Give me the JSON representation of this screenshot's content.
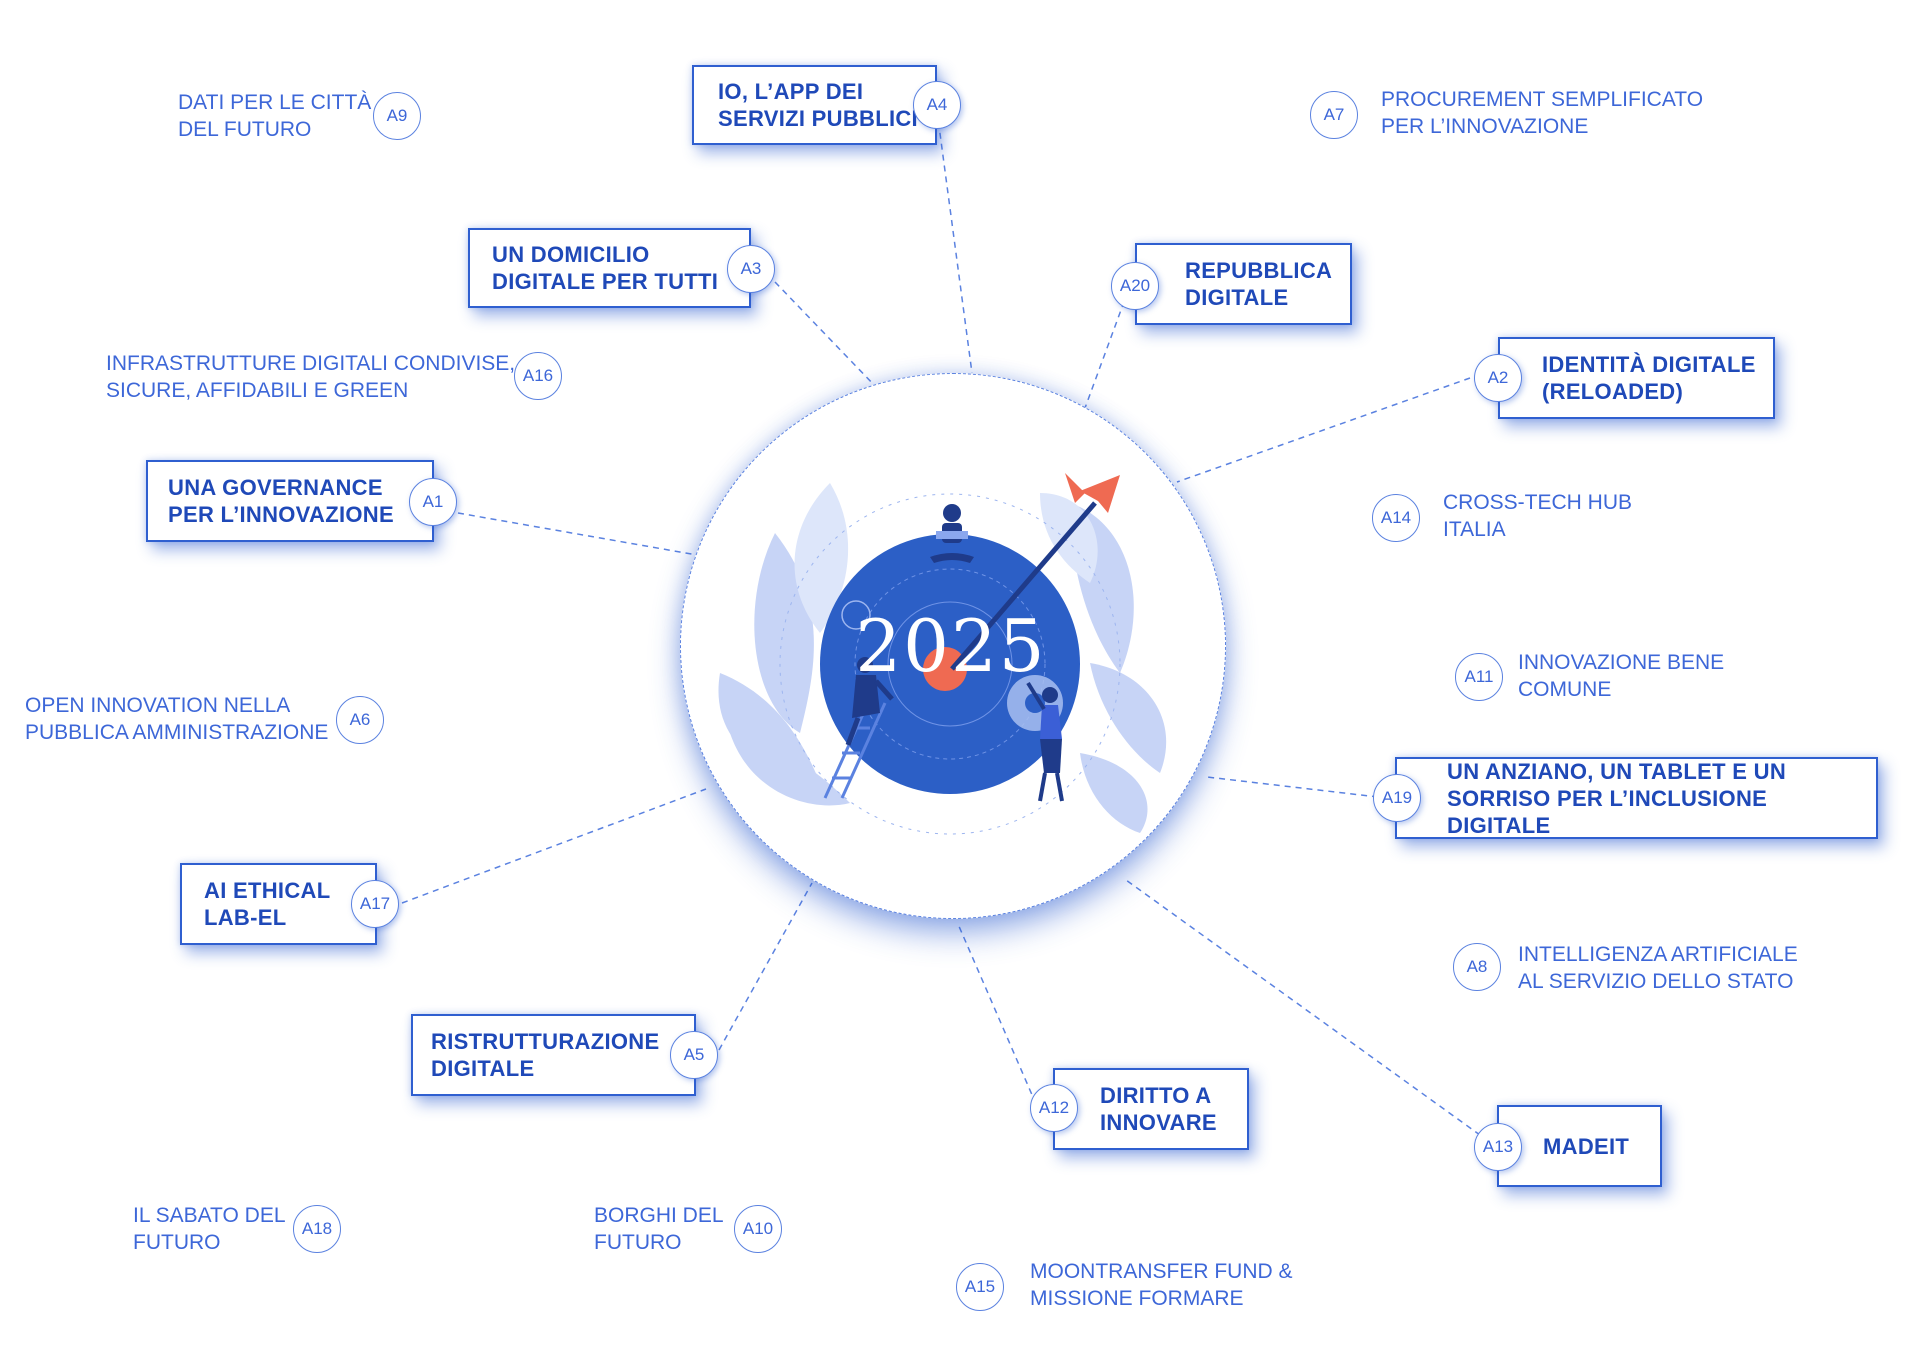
{
  "colors": {
    "accent": "#1f49b8",
    "light": "#3d67d8",
    "disc": "#2c5fc6",
    "arrow": "#ef6a52"
  },
  "center": {
    "year": "2025"
  },
  "actions": [
    {
      "id": "A1",
      "title": "UNA GOVERNANCE\nPER L’INNOVAZIONE",
      "highlighted": true
    },
    {
      "id": "A2",
      "title": "IDENTITÀ DIGITALE\n(RELOADED)",
      "highlighted": true
    },
    {
      "id": "A3",
      "title": "UN DOMICILIO\nDIGITALE PER TUTTI",
      "highlighted": true
    },
    {
      "id": "A4",
      "title": "IO, L’APP DEI\nSERVIZI PUBBLICI",
      "highlighted": true
    },
    {
      "id": "A5",
      "title": "RISTRUTTURAZIONE\nDIGITALE",
      "highlighted": true
    },
    {
      "id": "A6",
      "title": "OPEN INNOVATION NELLA\nPUBBLICA AMMINISTRAZIONE",
      "highlighted": false
    },
    {
      "id": "A7",
      "title": "PROCUREMENT SEMPLIFICATO\nPER L’INNOVAZIONE",
      "highlighted": false
    },
    {
      "id": "A8",
      "title": "INTELLIGENZA ARTIFICIALE\nAL SERVIZIO DELLO STATO",
      "highlighted": false
    },
    {
      "id": "A9",
      "title": "DATI PER LE CITTÀ\nDEL FUTURO",
      "highlighted": false
    },
    {
      "id": "A10",
      "title": "BORGHI DEL\nFUTURO",
      "highlighted": false
    },
    {
      "id": "A11",
      "title": "INNOVAZIONE BENE\nCOMUNE",
      "highlighted": false
    },
    {
      "id": "A12",
      "title": "DIRITTO A\nINNOVARE",
      "highlighted": true
    },
    {
      "id": "A13",
      "title": "MADEIT",
      "highlighted": true
    },
    {
      "id": "A14",
      "title": "CROSS-TECH HUB\nITALIA",
      "highlighted": false
    },
    {
      "id": "A15",
      "title": "MOONTRANSFER FUND &\nMISSIONE FORMARE",
      "highlighted": false
    },
    {
      "id": "A16",
      "title": "INFRASTRUTTURE DIGITALI CONDIVISE,\nSICURE, AFFIDABILI E GREEN",
      "highlighted": false
    },
    {
      "id": "A17",
      "title": "AI ETHICAL\nLAB-EL",
      "highlighted": true
    },
    {
      "id": "A18",
      "title": "IL SABATO DEL\nFUTURO",
      "highlighted": false
    },
    {
      "id": "A19",
      "title": "UN ANZIANO, UN TABLET E UN\nSORRISO PER L’INCLUSIONE DIGITALE",
      "highlighted": true
    },
    {
      "id": "A20",
      "title": "REPUBBLICA\nDIGITALE",
      "highlighted": true
    }
  ]
}
